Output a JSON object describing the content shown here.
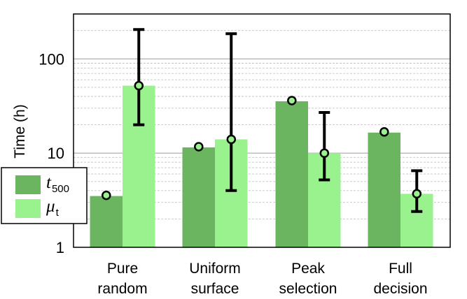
{
  "chart_data": {
    "type": "bar",
    "yscale": "log",
    "ylim": [
      1,
      300
    ],
    "ylabel": "Time (h)",
    "yticks": [
      "1",
      "10",
      "100"
    ],
    "categories": [
      [
        "Pure",
        "random"
      ],
      [
        "Uniform",
        "surface"
      ],
      [
        "Peak",
        "selection"
      ],
      [
        "Full",
        "decision"
      ]
    ],
    "series": [
      {
        "name": "t",
        "name_sub": "500",
        "color": "#6bb560",
        "values": [
          3.5,
          11.5,
          35.5,
          16.5
        ]
      },
      {
        "name": "μ",
        "name_sub": "t",
        "color": "#99f28e",
        "values": [
          52,
          14,
          10,
          3.7
        ],
        "error_low": [
          20,
          4,
          5.2,
          2.4
        ],
        "error_high": [
          205,
          185,
          27,
          6.5
        ]
      }
    ],
    "marker_color": "#99f28e",
    "grid": true,
    "legend_position": "left-middle"
  }
}
